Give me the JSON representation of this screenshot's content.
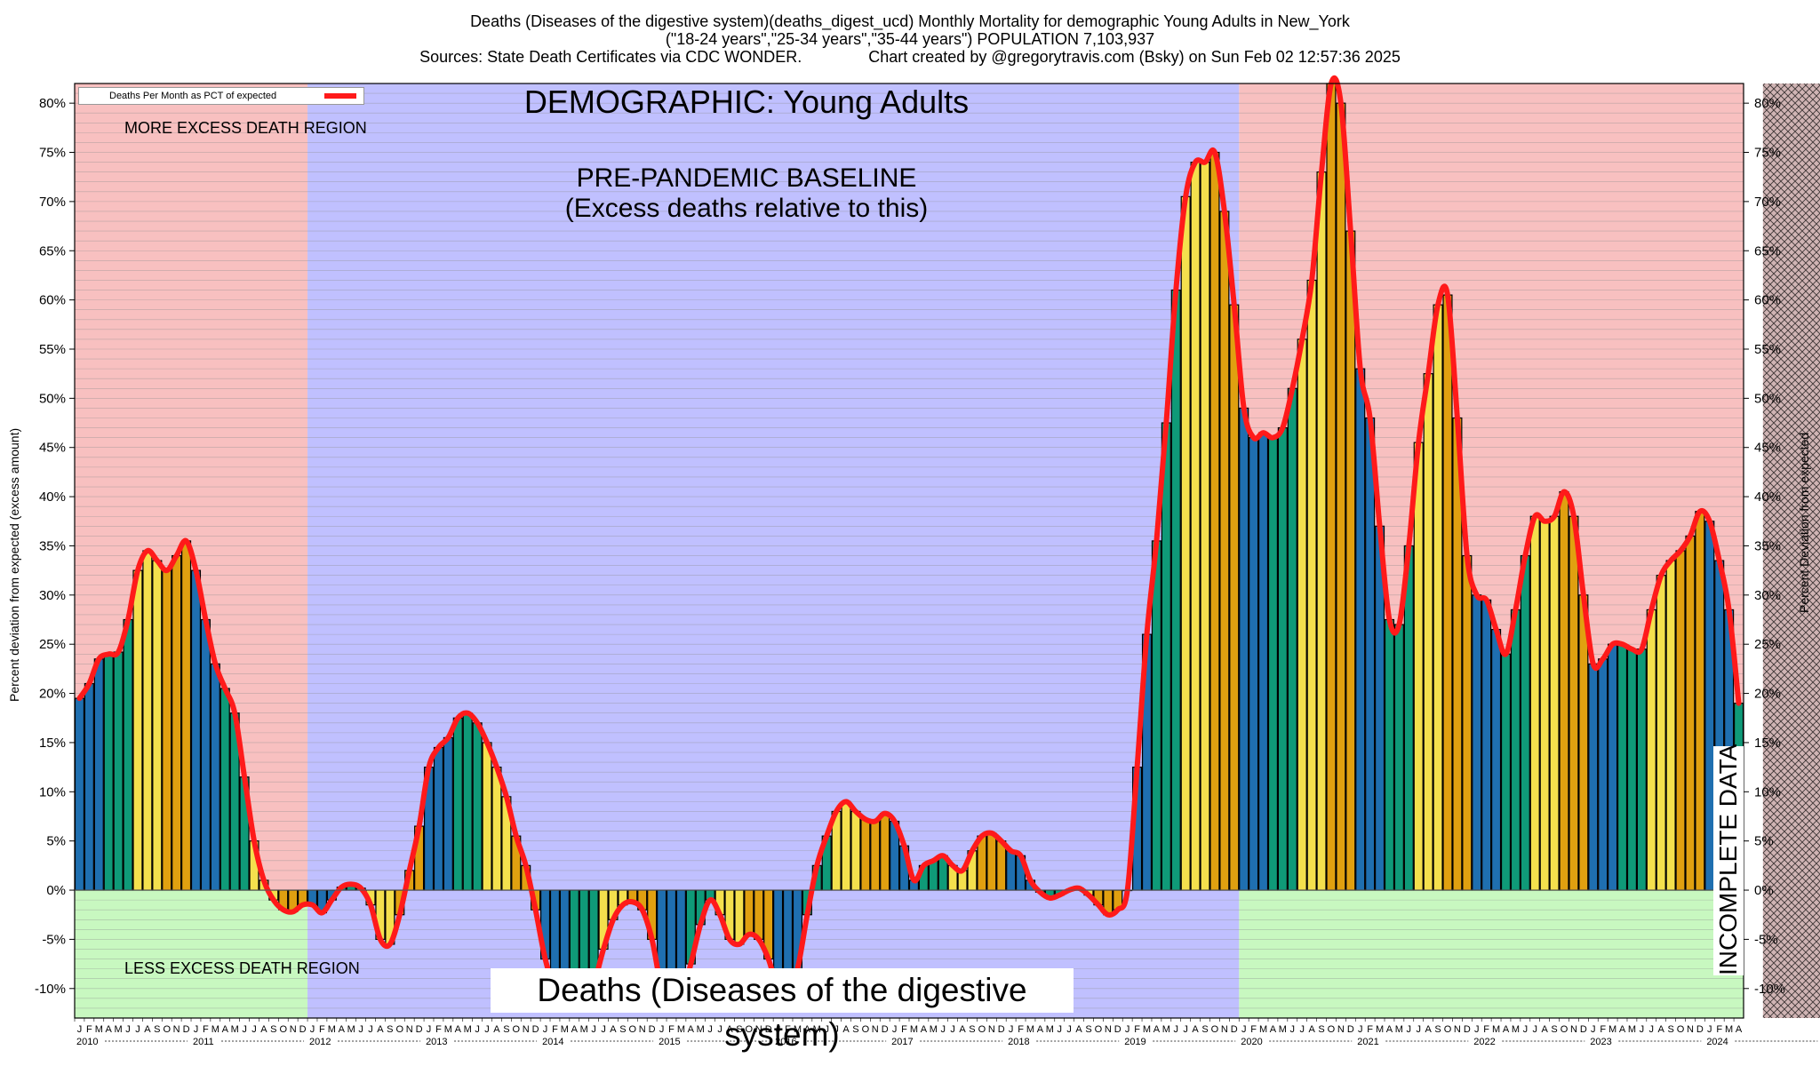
{
  "header": {
    "line1": "Deaths (Diseases of the digestive system)(deaths_digest_ucd) Monthly Mortality for demographic Young Adults in New_York",
    "line2": "(\"18-24 years\",\"25-34 years\",\"35-44 years\") POPULATION 7,103,937",
    "line3": "Sources: State Death Certificates via CDC WONDER.               Chart created by @gregorytravis.com (Bsky) on Sun Feb 02 12:57:36 2025"
  },
  "legend_label": "Deaths Per Month as PCT of expected",
  "annotations": {
    "demographic": "DEMOGRAPHIC: Young Adults",
    "baseline_line1": "PRE-PANDEMIC BASELINE",
    "baseline_line2": "(Excess deaths relative to this)",
    "more_region": "MORE EXCESS DEATH REGION",
    "less_region": "LESS EXCESS DEATH REGION",
    "incomplete": "INCOMPLETE DATA",
    "bottom_title": "Deaths (Diseases of the digestive system)"
  },
  "colors": {
    "more_excess_bg": "#f8c0c0",
    "less_excess_bg": "#c8f8c0",
    "baseline_bg": "#c0c0ff",
    "line": "#ff1a1a",
    "bar_blue": "#1f6fb0",
    "bar_green": "#0f9a78",
    "bar_yellow": "#f4e04d",
    "bar_orange": "#e0a010"
  },
  "chart_data": {
    "type": "bar",
    "title": "Deaths (Diseases of the digestive system)(deaths_digest_ucd) Monthly Mortality for demographic Young Adults in New_York",
    "ylabel_left": "Percent deviation from expected (excess amount)",
    "ylabel_right": "Percent Deviation from expected",
    "ylim": [
      -13,
      82
    ],
    "yticks": [
      -10,
      -5,
      0,
      5,
      10,
      15,
      20,
      25,
      30,
      35,
      40,
      45,
      50,
      55,
      60,
      65,
      70,
      75,
      80
    ],
    "ytick_labels": [
      "-10%",
      "-5%",
      "0%",
      "5%",
      "10%",
      "15%",
      "20%",
      "25%",
      "30%",
      "35%",
      "40%",
      "45%",
      "50%",
      "55%",
      "60%",
      "65%",
      "70%",
      "75%",
      "80%"
    ],
    "x_start": "2010-01",
    "month_letters": [
      "J",
      "F",
      "M",
      "A",
      "M",
      "J",
      "J",
      "A",
      "S",
      "O",
      "N",
      "D"
    ],
    "x_year_labels": [
      "2010",
      "2011",
      "2012",
      "2013",
      "2014",
      "2015",
      "2016",
      "2017",
      "2018",
      "2019",
      "2020",
      "2021",
      "2022",
      "2023",
      "2024"
    ],
    "baseline_period": [
      "2012-01",
      "2019-12"
    ],
    "incomplete_period": [
      "2024-07",
      "2024-12"
    ],
    "grid": true,
    "legend_position": "top-left",
    "series": [
      {
        "name": "Deaths Per Month as PCT of expected",
        "values": [
          19.5,
          21.0,
          23.5,
          24.0,
          24.2,
          27.5,
          32.5,
          34.5,
          33.5,
          32.5,
          34.0,
          35.5,
          32.5,
          27.5,
          23.0,
          20.5,
          18.0,
          11.5,
          5.0,
          1.0,
          -1.0,
          -2.0,
          -2.2,
          -1.5,
          -1.5,
          -2.3,
          -1.0,
          0.3,
          0.6,
          0.2,
          -1.5,
          -5.0,
          -5.5,
          -2.5,
          2.0,
          6.5,
          12.5,
          14.5,
          15.5,
          17.5,
          18.0,
          17.0,
          15.0,
          12.5,
          9.5,
          5.5,
          2.5,
          -2.0,
          -7.0,
          -10.0,
          -10.5,
          -10.5,
          -11.0,
          -9.5,
          -6.0,
          -3.0,
          -1.5,
          -1.2,
          -2.0,
          -5.0,
          -10.0,
          -11.5,
          -11.0,
          -7.5,
          -3.5,
          -1.0,
          -2.5,
          -5.0,
          -5.5,
          -4.5,
          -5.0,
          -7.0,
          -10.0,
          -10.5,
          -8.0,
          -2.5,
          2.5,
          5.5,
          8.0,
          9.0,
          8.0,
          7.2,
          7.0,
          7.8,
          7.0,
          4.5,
          1.0,
          2.5,
          3.0,
          3.5,
          2.5,
          2.0,
          4.0,
          5.5,
          5.8,
          5.0,
          4.0,
          3.5,
          1.0,
          -0.2,
          -0.8,
          -0.5,
          0.0,
          0.2,
          -0.5,
          -1.5,
          -2.5,
          -2.0,
          0.0,
          12.5,
          26.0,
          35.5,
          47.5,
          61.0,
          70.5,
          74.0,
          74.0,
          75.0,
          69.0,
          59.5,
          49.0,
          46.0,
          46.5,
          46.0,
          47.0,
          51.0,
          56.0,
          62.0,
          73.0,
          82.0,
          80.0,
          67.0,
          53.0,
          48.0,
          37.0,
          27.5,
          27.0,
          35.0,
          45.5,
          52.5,
          59.5,
          60.5,
          48.0,
          34.0,
          30.0,
          29.5,
          26.5,
          24.0,
          28.5,
          34.0,
          38.0,
          37.5,
          38.0,
          40.5,
          38.0,
          30.0,
          23.0,
          23.5,
          25.0,
          25.0,
          24.5,
          24.5,
          28.5,
          32.0,
          33.5,
          34.5,
          36.0,
          38.5,
          37.5,
          33.5,
          28.5,
          19.0
        ]
      }
    ]
  }
}
